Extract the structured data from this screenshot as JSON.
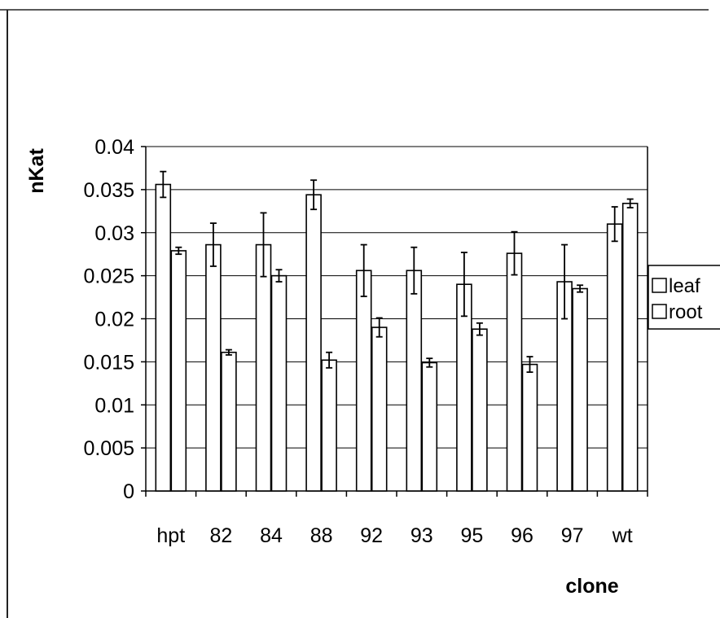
{
  "chart_data": {
    "type": "bar",
    "title": "",
    "xlabel": "clone",
    "ylabel": "nKat",
    "ylim": [
      0,
      0.04
    ],
    "yticks": [
      "0",
      "0.005",
      "0.01",
      "0.015",
      "0.02",
      "0.025",
      "0.03",
      "0.035",
      "0.04"
    ],
    "categories": [
      "hpt",
      "82",
      "84",
      "88",
      "92",
      "93",
      "95",
      "96",
      "97",
      "wt"
    ],
    "series": [
      {
        "name": "leaf",
        "values": [
          0.0356,
          0.0286,
          0.0286,
          0.0344,
          0.0256,
          0.0256,
          0.024,
          0.0276,
          0.0243,
          0.031
        ],
        "errors": [
          0.0015,
          0.0025,
          0.0037,
          0.0017,
          0.003,
          0.0027,
          0.0037,
          0.0025,
          0.0043,
          0.002
        ]
      },
      {
        "name": "root",
        "values": [
          0.0279,
          0.0161,
          0.025,
          0.0152,
          0.019,
          0.0149,
          0.0188,
          0.0147,
          0.0235,
          0.0334
        ]
      }
    ],
    "root_errors": [
      0.0004,
      0.0003,
      0.0007,
      0.0009,
      0.0011,
      0.0005,
      0.0007,
      0.0009,
      0.0004,
      0.0005
    ],
    "grid": "horizontal",
    "legend_position": "right",
    "bar_fill": "#ffffff",
    "bar_stroke": "#000000"
  }
}
